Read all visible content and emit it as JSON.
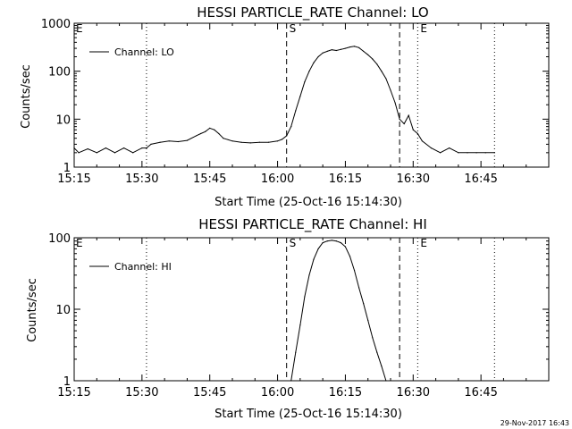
{
  "footer": {
    "timestamp": "29-Nov-2017 16:43"
  },
  "chart_data": [
    {
      "type": "line",
      "title": "HESSI PARTICLE_RATE Channel: LO",
      "xlabel": "Start Time (25-Oct-16 15:14:30)",
      "ylabel": "Counts/sec",
      "yscale": "log",
      "xlim": [
        "15:15",
        "17:00"
      ],
      "ylim": [
        1,
        1000
      ],
      "x_ticks": [
        "15:15",
        "15:30",
        "15:45",
        "16:00",
        "16:15",
        "16:30",
        "16:45"
      ],
      "y_ticks": [
        "1",
        "10",
        "100",
        "1000"
      ],
      "legend": {
        "position": "top-left",
        "entries": [
          "Channel: LO"
        ]
      },
      "grid": false,
      "vlines": [
        {
          "time": "15:31",
          "style": "dotted",
          "label": ""
        },
        {
          "time": "16:02",
          "style": "dashed",
          "label": "S"
        },
        {
          "time": "16:27",
          "style": "dashed",
          "label": ""
        },
        {
          "time": "16:31",
          "style": "dotted",
          "label": "E"
        },
        {
          "time": "16:48",
          "style": "dotted",
          "label": ""
        }
      ],
      "corner_labels": [
        "E"
      ],
      "series": [
        {
          "name": "Channel: LO",
          "x": [
            "15:15",
            "15:16",
            "15:18",
            "15:20",
            "15:22",
            "15:24",
            "15:26",
            "15:28",
            "15:30",
            "15:31",
            "15:32",
            "15:34",
            "15:36",
            "15:38",
            "15:40",
            "15:42",
            "15:43",
            "15:44",
            "15:45",
            "15:46",
            "15:47",
            "15:48",
            "15:50",
            "15:52",
            "15:54",
            "15:56",
            "15:58",
            "16:00",
            "16:01",
            "16:02",
            "16:03",
            "16:04",
            "16:05",
            "16:06",
            "16:07",
            "16:08",
            "16:09",
            "16:10",
            "16:11",
            "16:12",
            "16:13",
            "16:14",
            "16:15",
            "16:16",
            "16:17",
            "16:18",
            "16:19",
            "16:20",
            "16:21",
            "16:22",
            "16:23",
            "16:24",
            "16:25",
            "16:26",
            "16:27",
            "16:28",
            "16:29",
            "16:30",
            "16:31",
            "16:32",
            "16:34",
            "16:36",
            "16:38",
            "16:40",
            "16:42",
            "16:44",
            "16:46",
            "16:48"
          ],
          "values": [
            2.5,
            2.0,
            2.4,
            2.0,
            2.5,
            2.0,
            2.5,
            2.0,
            2.5,
            2.5,
            3.0,
            3.3,
            3.5,
            3.4,
            3.6,
            4.5,
            5.0,
            5.5,
            6.5,
            6.0,
            5.0,
            4.0,
            3.5,
            3.3,
            3.2,
            3.3,
            3.3,
            3.5,
            3.8,
            4.5,
            7,
            15,
            30,
            60,
            100,
            150,
            200,
            240,
            260,
            280,
            270,
            285,
            300,
            320,
            330,
            310,
            260,
            220,
            180,
            140,
            100,
            70,
            40,
            22,
            10,
            8,
            12,
            6,
            5,
            3.5,
            2.5,
            2.0,
            2.5,
            2.0,
            2.0,
            2.0,
            2.0,
            2.0
          ]
        }
      ]
    },
    {
      "type": "line",
      "title": "HESSI PARTICLE_RATE Channel: HI",
      "xlabel": "Start Time (25-Oct-16 15:14:30)",
      "ylabel": "Counts/sec",
      "yscale": "log",
      "xlim": [
        "15:15",
        "17:00"
      ],
      "ylim": [
        1,
        100
      ],
      "x_ticks": [
        "15:15",
        "15:30",
        "15:45",
        "16:00",
        "16:15",
        "16:30",
        "16:45"
      ],
      "y_ticks": [
        "1",
        "10",
        "100"
      ],
      "legend": {
        "position": "top-left",
        "entries": [
          "Channel: HI"
        ]
      },
      "grid": false,
      "vlines": [
        {
          "time": "15:31",
          "style": "dotted",
          "label": ""
        },
        {
          "time": "16:02",
          "style": "dashed",
          "label": "S"
        },
        {
          "time": "16:27",
          "style": "dashed",
          "label": ""
        },
        {
          "time": "16:31",
          "style": "dotted",
          "label": "E"
        },
        {
          "time": "16:48",
          "style": "dotted",
          "label": ""
        }
      ],
      "corner_labels": [
        "E"
      ],
      "series": [
        {
          "name": "Channel: HI",
          "x": [
            "16:03",
            "16:04",
            "16:05",
            "16:06",
            "16:07",
            "16:08",
            "16:09",
            "16:10",
            "16:11",
            "16:12",
            "16:13",
            "16:14",
            "16:15",
            "16:16",
            "16:17",
            "16:18",
            "16:19",
            "16:20",
            "16:21",
            "16:22",
            "16:23",
            "16:24"
          ],
          "values": [
            1,
            2.5,
            6,
            15,
            30,
            50,
            70,
            85,
            90,
            92,
            90,
            85,
            75,
            55,
            35,
            20,
            12,
            7,
            4,
            2.5,
            1.6,
            1
          ]
        }
      ]
    }
  ]
}
